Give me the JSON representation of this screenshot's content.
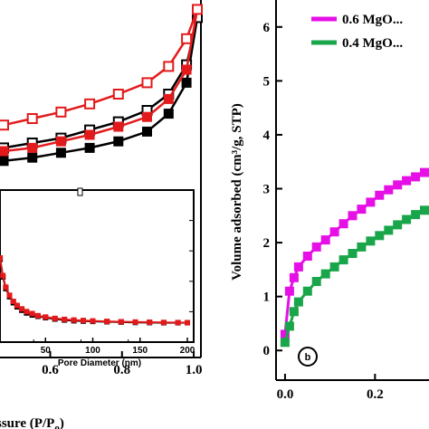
{
  "chart_data": [
    {
      "panel": "left",
      "type": "line",
      "xlabel": "ssure (P/P",
      "xlabel_sub": "o",
      "xlabel_close": ")",
      "xlim": [
        0.46,
        1.02
      ],
      "ylim": [
        0,
        1
      ],
      "xticks": [
        0.6,
        0.8,
        1.0
      ],
      "xtick_labels": [
        "0.6",
        "0.8",
        "1.0"
      ],
      "series": [
        {
          "color": "#000000",
          "marker": "filled-square",
          "x": [
            0.47,
            0.55,
            0.63,
            0.71,
            0.79,
            0.87,
            0.93,
            0.98,
            1.01
          ],
          "y": [
            0.04,
            0.06,
            0.09,
            0.12,
            0.16,
            0.22,
            0.33,
            0.52,
            0.92
          ]
        },
        {
          "color": "#000000",
          "marker": "open-square",
          "x": [
            0.47,
            0.55,
            0.63,
            0.71,
            0.79,
            0.87,
            0.93,
            0.98,
            1.01
          ],
          "y": [
            0.12,
            0.15,
            0.18,
            0.23,
            0.28,
            0.35,
            0.45,
            0.63,
            0.92
          ]
        },
        {
          "color": "#e31a1c",
          "marker": "filled-square",
          "x": [
            0.47,
            0.55,
            0.63,
            0.71,
            0.79,
            0.87,
            0.93,
            0.98,
            1.01
          ],
          "y": [
            0.1,
            0.12,
            0.16,
            0.2,
            0.25,
            0.31,
            0.42,
            0.6,
            0.97
          ]
        },
        {
          "color": "#e31a1c",
          "marker": "open-square",
          "x": [
            0.47,
            0.55,
            0.63,
            0.71,
            0.79,
            0.87,
            0.93,
            0.98,
            1.01
          ],
          "y": [
            0.26,
            0.3,
            0.34,
            0.39,
            0.45,
            0.52,
            0.62,
            0.79,
            0.97
          ]
        }
      ]
    },
    {
      "panel": "inset",
      "type": "line",
      "xlabel": "Pore Diameter (nm)",
      "xlim": [
        0,
        200
      ],
      "ylim": [
        0,
        1
      ],
      "xticks": [
        50,
        100,
        150,
        200
      ],
      "xtick_labels": [
        "50",
        "100",
        "150",
        "200"
      ],
      "series": [
        {
          "color": "#000000",
          "marker": "filled-square",
          "x": [
            2,
            5,
            8,
            12,
            16,
            20,
            25,
            30,
            36,
            42,
            50,
            60,
            70,
            80,
            90,
            100,
            115,
            130,
            145,
            160,
            175,
            190,
            200
          ],
          "y": [
            0.98,
            0.72,
            0.55,
            0.43,
            0.34,
            0.28,
            0.23,
            0.19,
            0.16,
            0.14,
            0.12,
            0.1,
            0.085,
            0.075,
            0.07,
            0.065,
            0.06,
            0.055,
            0.05,
            0.048,
            0.046,
            0.045,
            0.045
          ]
        },
        {
          "color": "#e31a1c",
          "marker": "filled-square",
          "x": [
            2,
            5,
            8,
            12,
            16,
            20,
            25,
            30,
            36,
            42,
            50,
            60,
            70,
            80,
            90,
            100,
            115,
            130,
            145,
            160,
            175,
            190,
            200
          ],
          "y": [
            1.0,
            0.74,
            0.57,
            0.45,
            0.36,
            0.3,
            0.25,
            0.21,
            0.18,
            0.15,
            0.13,
            0.11,
            0.095,
            0.085,
            0.078,
            0.072,
            0.066,
            0.06,
            0.056,
            0.053,
            0.05,
            0.048,
            0.047
          ]
        }
      ]
    },
    {
      "panel": "right",
      "type": "line",
      "ylabel": "Volume adsorbed (cm³/g, STP)",
      "xlim": [
        -0.02,
        0.32
      ],
      "ylim": [
        -0.55,
        6.5
      ],
      "xticks": [
        0.0,
        0.2
      ],
      "xtick_labels": [
        "0.0",
        "0.2"
      ],
      "yticks": [
        0,
        1,
        2,
        3,
        4,
        5,
        6
      ],
      "ytick_labels": [
        "0",
        "1",
        "2",
        "3",
        "4",
        "5",
        "6"
      ],
      "badge": "b",
      "series": [
        {
          "name": "0.6 MgO...",
          "color": "#e60fe6",
          "marker": "filled-square",
          "x": [
            0.0,
            0.01,
            0.02,
            0.03,
            0.05,
            0.07,
            0.09,
            0.11,
            0.13,
            0.15,
            0.17,
            0.19,
            0.21,
            0.23,
            0.25,
            0.27,
            0.29,
            0.31
          ],
          "y": [
            0.3,
            1.1,
            1.35,
            1.55,
            1.75,
            1.92,
            2.05,
            2.2,
            2.35,
            2.5,
            2.62,
            2.75,
            2.88,
            2.98,
            3.07,
            3.15,
            3.22,
            3.3
          ]
        },
        {
          "name": "0.4 MgO...",
          "color": "#19a64a",
          "marker": "filled-square",
          "x": [
            0.0,
            0.01,
            0.02,
            0.03,
            0.05,
            0.07,
            0.09,
            0.11,
            0.13,
            0.15,
            0.17,
            0.19,
            0.21,
            0.23,
            0.25,
            0.27,
            0.29,
            0.31
          ],
          "y": [
            0.15,
            0.45,
            0.72,
            0.9,
            1.1,
            1.28,
            1.42,
            1.55,
            1.68,
            1.8,
            1.92,
            2.03,
            2.13,
            2.23,
            2.33,
            2.43,
            2.52,
            2.6
          ]
        }
      ]
    }
  ]
}
